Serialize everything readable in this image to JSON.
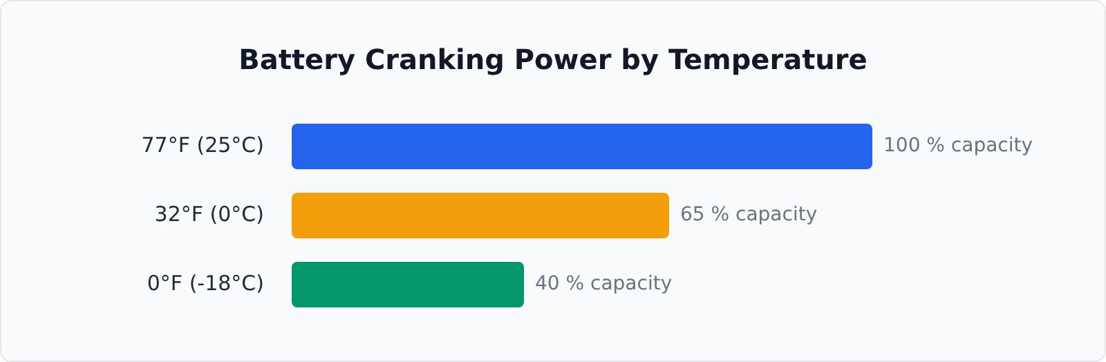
{
  "chart_data": {
    "type": "bar",
    "orientation": "horizontal",
    "title": "Battery Cranking Power by Temperature",
    "categories": [
      "77°F (25°C)",
      "32°F (0°C)",
      "0°F (-18°C)"
    ],
    "values": [
      100,
      65,
      40
    ],
    "colors": [
      "#2563eb",
      "#f59e0b",
      "#059669"
    ],
    "value_labels": [
      "100 % capacity",
      "65 % capacity",
      "40 % capacity"
    ],
    "tick_labels": "y"
  }
}
